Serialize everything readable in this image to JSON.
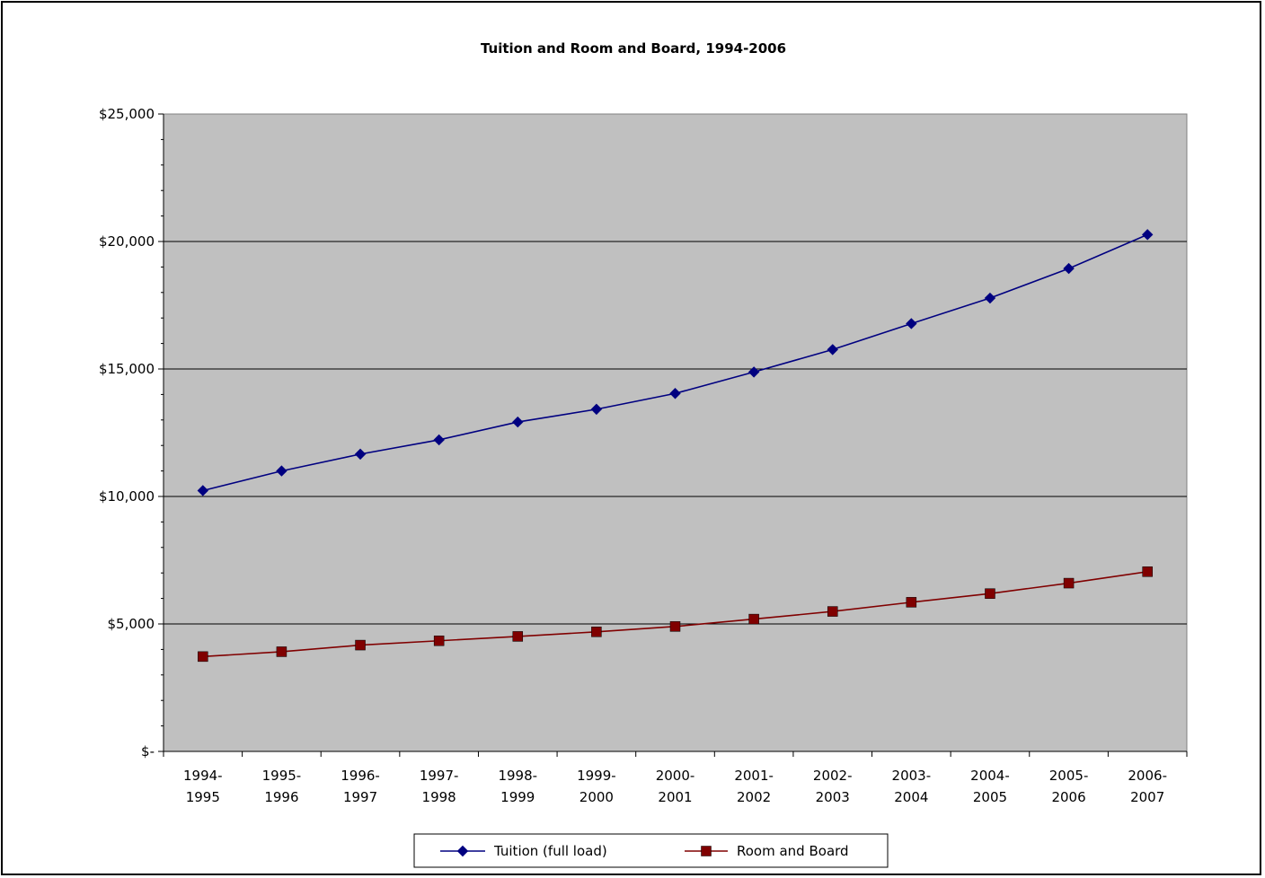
{
  "chart_data": {
    "type": "line",
    "title": "Tuition and Room and Board, 1994-2006",
    "xlabel": "",
    "ylabel": "",
    "categories": [
      [
        "1994-",
        "1995"
      ],
      [
        "1995-",
        "1996"
      ],
      [
        "1996-",
        "1997"
      ],
      [
        "1997-",
        "1998"
      ],
      [
        "1998-",
        "1999"
      ],
      [
        "1999-",
        "2000"
      ],
      [
        "2000-",
        "2001"
      ],
      [
        "2001-",
        "2002"
      ],
      [
        "2002-",
        "2003"
      ],
      [
        "2003-",
        "2004"
      ],
      [
        "2004-",
        "2005"
      ],
      [
        "2005-",
        "2006"
      ],
      [
        "2006-",
        "2007"
      ]
    ],
    "ylim": [
      0,
      25000
    ],
    "yticks": [
      0,
      5000,
      10000,
      15000,
      20000,
      25000
    ],
    "ytick_labels": [
      "$-",
      "$5,000",
      "$10,000",
      "$15,000",
      "$20,000",
      "$25,000"
    ],
    "grid": true,
    "legend_position": "bottom",
    "plot_background": "#c0c0c0",
    "series": [
      {
        "name": "Tuition (full load)",
        "color": "#000080",
        "marker": "diamond",
        "values": [
          10230,
          11000,
          11660,
          12220,
          12920,
          13420,
          14040,
          14880,
          15760,
          16780,
          17780,
          18940,
          20270
        ]
      },
      {
        "name": "Room and Board",
        "color": "#800000",
        "marker": "square",
        "values": [
          3720,
          3910,
          4170,
          4340,
          4510,
          4690,
          4900,
          5190,
          5490,
          5850,
          6190,
          6600,
          7050
        ]
      }
    ]
  }
}
